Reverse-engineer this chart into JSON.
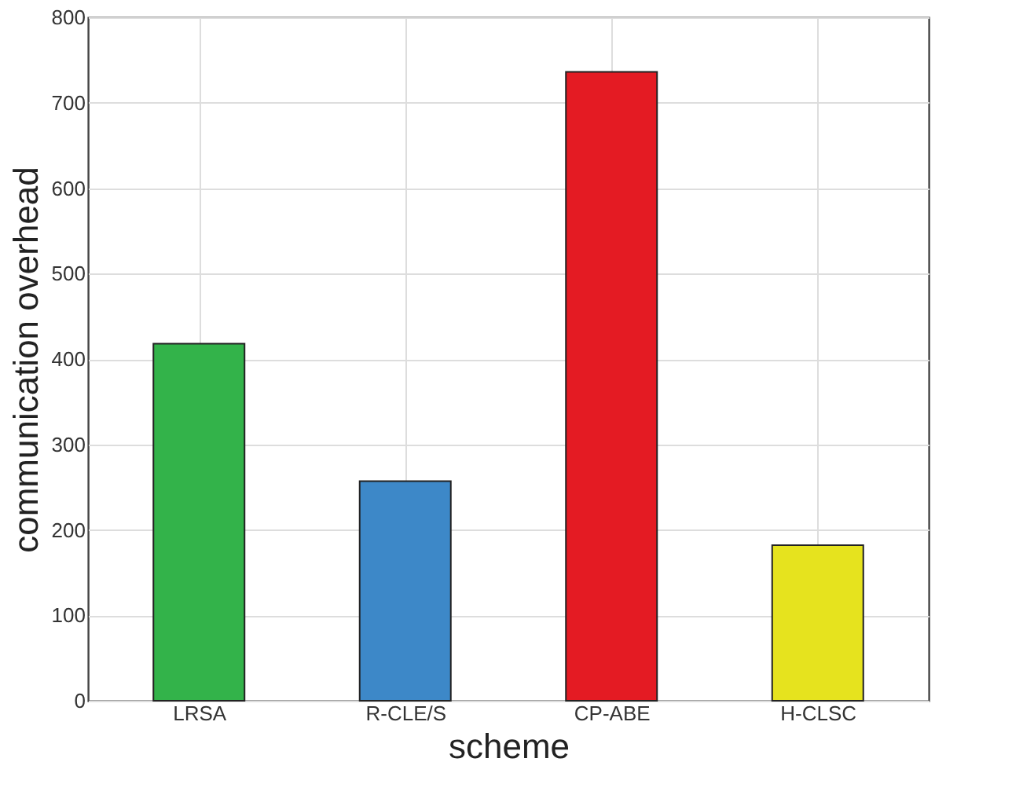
{
  "chart_data": {
    "type": "bar",
    "xlabel": "scheme",
    "ylabel": "communication overhead",
    "categories": [
      "LRSA",
      "R-CLE/S",
      "CP-ABE",
      "H-CLSC"
    ],
    "values": [
      418,
      257,
      736,
      182
    ],
    "colors": [
      "#33b34a",
      "#3d88c8",
      "#e41b23",
      "#e6e31e"
    ],
    "ylim": [
      0,
      800
    ],
    "yticks": [
      0,
      100,
      200,
      300,
      400,
      500,
      600,
      700,
      800
    ],
    "grid": true
  }
}
